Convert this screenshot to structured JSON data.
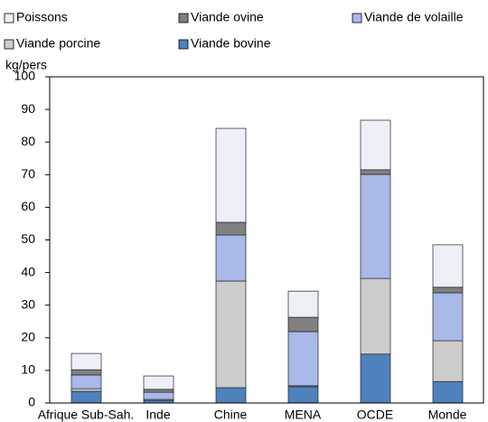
{
  "chart_data": {
    "type": "stacked_bar",
    "y_label": "kg/pers",
    "categories": [
      "Afrique Sub-Sah.",
      "Inde",
      "Chine",
      "MENA",
      "OCDE",
      "Monde"
    ],
    "series": [
      {
        "name": "Viande bovine",
        "color": "#4f81bd",
        "values": [
          3.6,
          0.8,
          4.7,
          5.0,
          15.0,
          6.6
        ]
      },
      {
        "name": "Viande porcine",
        "color": "#cccccc",
        "values": [
          0.8,
          0.3,
          32.7,
          0.3,
          23.2,
          12.5
        ]
      },
      {
        "name": "Viande de volaille",
        "color": "#a9b9e8",
        "values": [
          4.2,
          2.2,
          14.1,
          16.6,
          31.9,
          14.7
        ]
      },
      {
        "name": "Viande ovine",
        "color": "#808080",
        "values": [
          1.6,
          0.9,
          3.9,
          4.4,
          1.4,
          1.7
        ]
      },
      {
        "name": "Poissons",
        "color": "#eef0f8",
        "values": [
          5.0,
          4.1,
          28.8,
          8.0,
          15.2,
          13.0
        ]
      }
    ],
    "ylim": [
      0,
      100
    ],
    "yticks": [
      0,
      10,
      20,
      30,
      40,
      50,
      60,
      70,
      80,
      90,
      100
    ]
  }
}
